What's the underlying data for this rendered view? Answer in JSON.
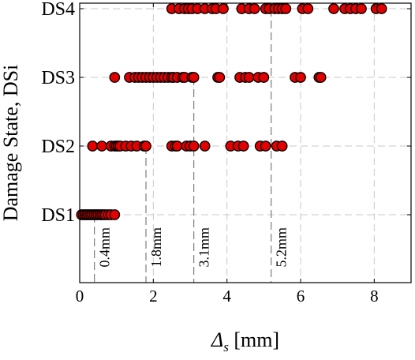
{
  "chart_data": {
    "type": "scatter",
    "xlabel": {
      "symbol": "Δ",
      "subscript": "s",
      "unit": " [mm]"
    },
    "ylabel": "Damage State, DSi",
    "xlim": [
      0,
      9
    ],
    "xticks": [
      0,
      2,
      4,
      6,
      8
    ],
    "categories": [
      "DS1",
      "DS2",
      "DS3",
      "DS4"
    ],
    "grid": true,
    "marker_color": "#e00000",
    "series": [
      {
        "category": "DS1",
        "x": [
          0.05,
          0.1,
          0.15,
          0.2,
          0.25,
          0.3,
          0.35,
          0.4,
          0.45,
          0.5,
          0.55,
          0.6,
          0.65,
          0.7,
          0.78,
          0.85,
          0.95
        ]
      },
      {
        "category": "DS2",
        "x": [
          0.35,
          0.6,
          0.85,
          0.95,
          1.0,
          1.05,
          1.1,
          1.25,
          1.4,
          1.55,
          1.75,
          1.8,
          2.5,
          2.6,
          2.65,
          2.9,
          3.0,
          3.1,
          3.4,
          4.1,
          4.3,
          4.45,
          4.9,
          5.05,
          5.35,
          5.5
        ]
      },
      {
        "category": "DS3",
        "x": [
          0.95,
          1.35,
          1.5,
          1.6,
          1.7,
          1.8,
          1.9,
          2.0,
          2.1,
          2.2,
          2.3,
          2.4,
          2.5,
          2.55,
          2.65,
          2.8,
          2.85,
          3.05,
          3.1,
          3.75,
          3.8,
          4.35,
          4.5,
          4.6,
          4.85,
          5.0,
          5.85,
          6.0,
          6.5,
          6.55
        ]
      },
      {
        "category": "DS4",
        "x": [
          2.5,
          2.7,
          2.85,
          2.95,
          3.05,
          3.2,
          3.4,
          3.6,
          3.7,
          3.9,
          4.4,
          4.6,
          4.75,
          5.05,
          5.15,
          5.3,
          5.4,
          5.5,
          5.6,
          6.05,
          6.2,
          6.9,
          7.2,
          7.35,
          7.5,
          7.65,
          8.05,
          8.2
        ]
      }
    ],
    "reference_lines": [
      {
        "x": 0.4,
        "label": "0.4mm",
        "upto": "DS1"
      },
      {
        "x": 1.8,
        "label": "1.8mm",
        "upto": "DS2"
      },
      {
        "x": 3.1,
        "label": "3.1mm",
        "upto": "DS3"
      },
      {
        "x": 5.2,
        "label": "5.2mm",
        "upto": "DS4"
      }
    ]
  }
}
